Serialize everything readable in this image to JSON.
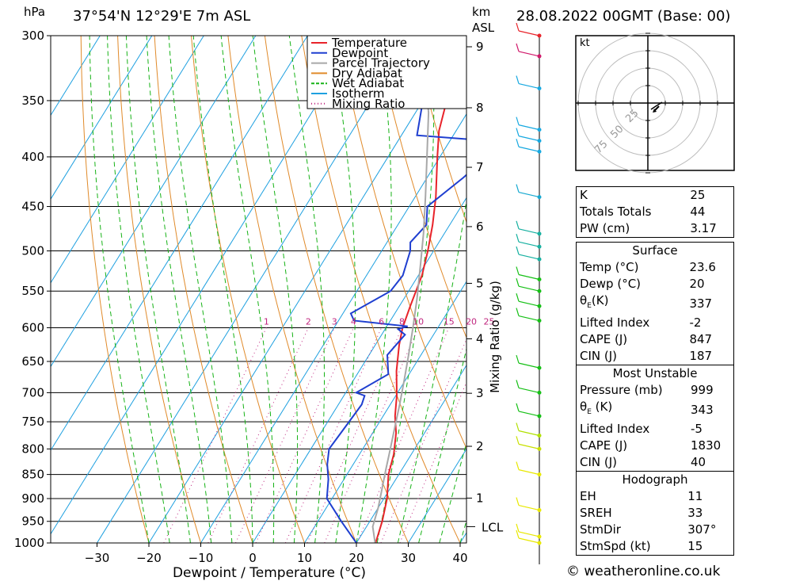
{
  "header": {
    "location": "37°54'N  12°29'E  7m  ASL",
    "datetime": "28.08.2022  00GMT  (Base: 00)",
    "hpa_unit": "hPa",
    "km_unit": "km",
    "asl_unit": "ASL"
  },
  "chart_data": {
    "type": "line",
    "xlabel": "Dewpoint / Temperature (°C)",
    "y2label": "Mixing Ratio (g/kg)",
    "x_ticks": [
      -30,
      -20,
      -10,
      0,
      10,
      20,
      30,
      40
    ],
    "x_tick_labels": [
      "−30",
      "−20",
      "−10",
      "0",
      "10",
      "20",
      "30",
      "40"
    ],
    "pressure_levels": [
      300,
      350,
      400,
      450,
      500,
      550,
      600,
      650,
      700,
      750,
      800,
      850,
      900,
      950,
      1000
    ],
    "pressure_labels": [
      "300",
      "350",
      "400",
      "450",
      "500",
      "550",
      "600",
      "650",
      "700",
      "750",
      "800",
      "850",
      "900",
      "950",
      "1000"
    ],
    "height_km": [
      {
        "km": 1,
        "p": 899
      },
      {
        "km": 2,
        "p": 795
      },
      {
        "km": 3,
        "p": 701
      },
      {
        "km": 4,
        "p": 616
      },
      {
        "km": 5,
        "p": 540
      },
      {
        "km": 6,
        "p": 472
      },
      {
        "km": 7,
        "p": 410
      },
      {
        "km": 8,
        "p": 356
      },
      {
        "km": 9,
        "p": 308
      }
    ],
    "height_km_labels": [
      "1",
      "2",
      "3",
      "4",
      "5",
      "6",
      "7",
      "8",
      "9"
    ],
    "lcl": {
      "label": "LCL",
      "p": 962
    },
    "mixing_ratio_labels": [
      "1",
      "2",
      "3",
      "4",
      "6",
      "8",
      "10",
      "15",
      "20",
      "25"
    ],
    "legend": [
      {
        "name": "Temperature",
        "color": "#e8232a"
      },
      {
        "name": "Dewpoint",
        "color": "#1f3fd0"
      },
      {
        "name": "Parcel Trajectory",
        "color": "#a8a8a8"
      },
      {
        "name": "Dry Adiabat",
        "color": "#e08a2a"
      },
      {
        "name": "Wet Adiabat",
        "color": "#16b216"
      },
      {
        "name": "Isotherm",
        "color": "#1ea0e0"
      },
      {
        "name": "Mixing Ratio",
        "color": "#c0267f"
      }
    ],
    "series": [
      {
        "name": "Temperature",
        "color": "#e8232a",
        "points": [
          [
            23.7,
            1000
          ],
          [
            22.4,
            950
          ],
          [
            20.6,
            900
          ],
          [
            18.0,
            850
          ],
          [
            16.6,
            810
          ],
          [
            14.5,
            770
          ],
          [
            12.3,
            740
          ],
          [
            10.2,
            705
          ],
          [
            7.2,
            665
          ],
          [
            4.6,
            625
          ],
          [
            3.2,
            600
          ],
          [
            2.1,
            570
          ],
          [
            0.7,
            530
          ],
          [
            -1.1,
            500
          ],
          [
            -3.3,
            470
          ],
          [
            -6.0,
            440
          ],
          [
            -10.5,
            400
          ],
          [
            -13.3,
            376
          ],
          [
            -15.4,
            350
          ],
          [
            -19.8,
            320
          ],
          [
            -23.6,
            300
          ]
        ]
      },
      {
        "name": "Dewpoint",
        "color": "#1f3fd0",
        "points": [
          [
            20.0,
            1000
          ],
          [
            14.5,
            950
          ],
          [
            9.0,
            900
          ],
          [
            7.0,
            860
          ],
          [
            5.0,
            830
          ],
          [
            3.5,
            800
          ],
          [
            4.0,
            760
          ],
          [
            4.5,
            720
          ],
          [
            4.0,
            705
          ],
          [
            2.0,
            700
          ],
          [
            6.0,
            670
          ],
          [
            3.5,
            640
          ],
          [
            4.5,
            610
          ],
          [
            2.5,
            602
          ],
          [
            4.0,
            598
          ],
          [
            -7.0,
            590
          ],
          [
            -8.5,
            580
          ],
          [
            -3.5,
            550
          ],
          [
            -3.0,
            530
          ],
          [
            -4.5,
            500
          ],
          [
            -5.5,
            490
          ],
          [
            -4.5,
            470
          ],
          [
            -6.5,
            450
          ],
          [
            -3.0,
            420
          ],
          [
            -1.0,
            400
          ],
          [
            -2.5,
            385
          ],
          [
            -17.0,
            380
          ],
          [
            -20.0,
            350
          ],
          [
            -17.5,
            300
          ]
        ]
      },
      {
        "name": "Parcel Trajectory",
        "color": "#a8a8a8",
        "points": [
          [
            23.6,
            1000
          ],
          [
            21.2,
            962
          ],
          [
            20.0,
            920
          ],
          [
            18.5,
            880
          ],
          [
            16.9,
            840
          ],
          [
            15.3,
            800
          ],
          [
            13.6,
            760
          ],
          [
            11.8,
            720
          ],
          [
            9.8,
            680
          ],
          [
            7.6,
            640
          ],
          [
            5.2,
            600
          ],
          [
            2.5,
            560
          ],
          [
            -0.6,
            520
          ],
          [
            -4.0,
            480
          ],
          [
            -8.0,
            440
          ],
          [
            -12.5,
            400
          ],
          [
            -17.5,
            360
          ],
          [
            -22.5,
            330
          ],
          [
            -26.0,
            300
          ]
        ]
      }
    ],
    "wind_barbs": [
      {
        "p": 1000,
        "color": "#e8e800"
      },
      {
        "p": 985,
        "color": "#e8e800"
      },
      {
        "p": 925,
        "color": "#e8e800"
      },
      {
        "p": 850,
        "color": "#e8e800"
      },
      {
        "p": 800,
        "color": "#c8e000"
      },
      {
        "p": 775,
        "color": "#b0e000"
      },
      {
        "p": 740,
        "color": "#16c016"
      },
      {
        "p": 700,
        "color": "#16c016"
      },
      {
        "p": 660,
        "color": "#16c016"
      },
      {
        "p": 590,
        "color": "#16c016"
      },
      {
        "p": 570,
        "color": "#16c016"
      },
      {
        "p": 550,
        "color": "#16c016"
      },
      {
        "p": 535,
        "color": "#16c016"
      },
      {
        "p": 510,
        "color": "#16b0a0"
      },
      {
        "p": 495,
        "color": "#16b0a0"
      },
      {
        "p": 480,
        "color": "#16b0a0"
      },
      {
        "p": 440,
        "color": "#16a8d0"
      },
      {
        "p": 395,
        "color": "#16a8e0"
      },
      {
        "p": 385,
        "color": "#16a8e0"
      },
      {
        "p": 375,
        "color": "#16a8e0"
      },
      {
        "p": 340,
        "color": "#16a8e0"
      },
      {
        "p": 315,
        "color": "#d0186a"
      },
      {
        "p": 300,
        "color": "#e8232a"
      }
    ]
  },
  "hodograph": {
    "unit": "kt",
    "ring_labels": [
      "25",
      "50",
      "75"
    ]
  },
  "indices": {
    "k_label": "K",
    "k_value": "25",
    "tt_label": "Totals Totals",
    "tt_value": "44",
    "pw_label": "PW (cm)",
    "pw_value": "3.17",
    "surface": {
      "title": "Surface",
      "temp_label": "Temp (°C)",
      "temp_value": "23.6",
      "dewp_label": "Dewp (°C)",
      "dewp_value": "20",
      "theta_label": "θ",
      "theta_sub": "E",
      "theta_unit": "(K)",
      "theta_value": "337",
      "li_label": "Lifted Index",
      "li_value": "-2",
      "cape_label": "CAPE (J)",
      "cape_value": "847",
      "cin_label": "CIN (J)",
      "cin_value": "187"
    },
    "most_unstable": {
      "title": "Most Unstable",
      "pressure_label": "Pressure (mb)",
      "pressure_value": "999",
      "theta_label": "θ",
      "theta_sub": "E",
      "theta_unit": "(K)",
      "theta_value": "343",
      "li_label": "Lifted Index",
      "li_value": "-5",
      "cape_label": "CAPE (J)",
      "cape_value": "1830",
      "cin_label": "CIN (J)",
      "cin_value": "40"
    },
    "hodograph": {
      "title": "Hodograph",
      "eh_label": "EH",
      "eh_value": "11",
      "srh_label": "SREH",
      "srh_value": "33",
      "dir_label": "StmDir",
      "dir_value": "307°",
      "spd_label": "StmSpd (kt)",
      "spd_value": "15"
    }
  },
  "credit": "© weatheronline.co.uk"
}
